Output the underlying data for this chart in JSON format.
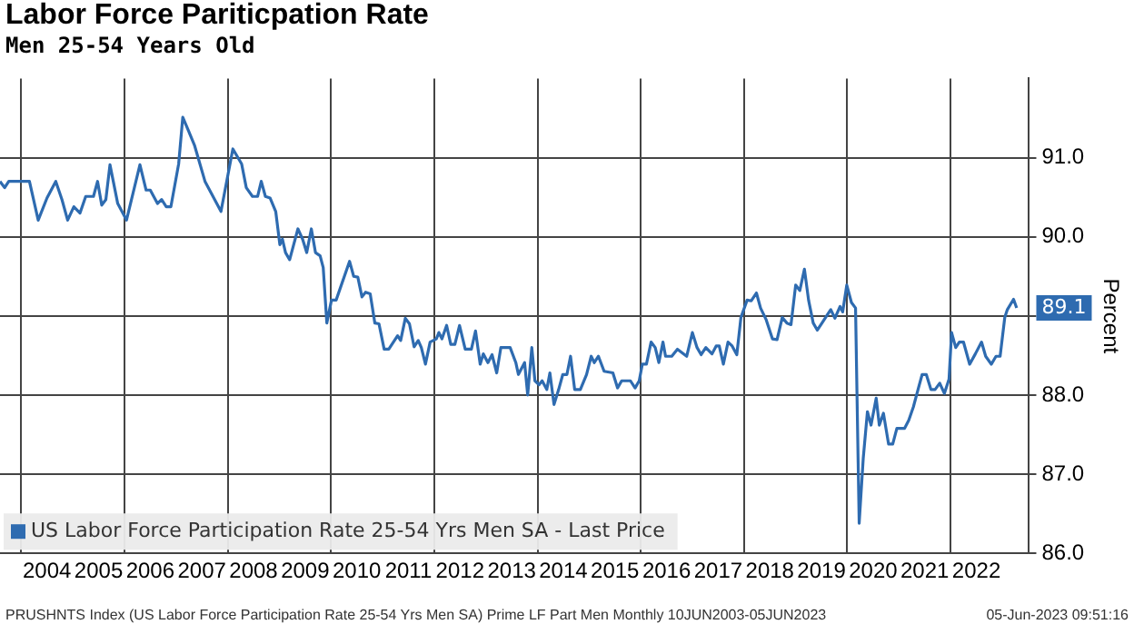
{
  "chart_data": {
    "type": "line",
    "title": "Labor Force Pariticpation Rate",
    "subtitle": "Men 25-54 Years Old",
    "ylabel": "Percent",
    "annotations": [
      "PRUSHNTS Index (US Labor Force Participation Rate 25-54 Yrs Men SA) Prime LF Part Men  Monthly 10JUN2003-05JUN2023",
      "05-Jun-2023 09:51:16"
    ],
    "x": [
      2003.59,
      2003.68,
      2003.76,
      2004.16,
      2004.33,
      2004.5,
      2004.67,
      2004.79,
      2004.9,
      2005.02,
      2005.14,
      2005.25,
      2005.4,
      2005.48,
      2005.56,
      2005.64,
      2005.72,
      2005.87,
      2006.04,
      2006.3,
      2006.42,
      2006.5,
      2006.64,
      2006.72,
      2006.81,
      2006.9,
      2007.05,
      2007.13,
      2007.24,
      2007.36,
      2007.56,
      2007.87,
      2008.1,
      2008.27,
      2008.36,
      2008.48,
      2008.58,
      2008.65,
      2008.73,
      2008.82,
      2008.93,
      2009.01,
      2009.06,
      2009.12,
      2009.2,
      2009.36,
      2009.45,
      2009.53,
      2009.62,
      2009.7,
      2009.79,
      2009.85,
      2009.92,
      2010.01,
      2010.1,
      2010.36,
      2010.44,
      2010.52,
      2010.6,
      2010.67,
      2010.76,
      2010.85,
      2010.93,
      2011.03,
      2011.12,
      2011.29,
      2011.35,
      2011.44,
      2011.52,
      2011.61,
      2011.69,
      2011.75,
      2011.83,
      2011.92,
      2012.04,
      2012.09,
      2012.15,
      2012.24,
      2012.32,
      2012.4,
      2012.49,
      2012.6,
      2012.72,
      2012.8,
      2012.89,
      2012.95,
      2013.04,
      2013.12,
      2013.21,
      2013.29,
      2013.47,
      2013.58,
      2013.63,
      2013.75,
      2013.81,
      2013.89,
      2013.95,
      2014.03,
      2014.09,
      2014.18,
      2014.24,
      2014.32,
      2014.41,
      2014.49,
      2014.57,
      2014.64,
      2014.72,
      2014.83,
      2014.95,
      2015.04,
      2015.1,
      2015.18,
      2015.29,
      2015.46,
      2015.55,
      2015.63,
      2015.8,
      2015.89,
      2015.97,
      2016.03,
      2016.11,
      2016.2,
      2016.28,
      2016.35,
      2016.43,
      2016.48,
      2016.6,
      2016.71,
      2016.89,
      2017.0,
      2017.09,
      2017.17,
      2017.26,
      2017.38,
      2017.46,
      2017.52,
      2017.6,
      2017.69,
      2017.77,
      2017.86,
      2017.94,
      2018.06,
      2018.14,
      2018.24,
      2018.32,
      2018.43,
      2018.55,
      2018.64,
      2018.74,
      2018.83,
      2018.91,
      2019.0,
      2019.08,
      2019.17,
      2019.25,
      2019.34,
      2019.42,
      2019.51,
      2019.63,
      2019.68,
      2019.76,
      2019.86,
      2019.91,
      2019.99,
      2020.08,
      2020.16,
      2020.23,
      2020.31,
      2020.39,
      2020.46,
      2020.56,
      2020.62,
      2020.7,
      2020.8,
      2020.88,
      2020.96,
      2021.11,
      2021.19,
      2021.28,
      2021.37,
      2021.45,
      2021.53,
      2021.62,
      2021.7,
      2021.79,
      2021.88,
      2021.97,
      2022.02,
      2022.1,
      2022.17,
      2022.25,
      2022.37,
      2022.48,
      2022.6,
      2022.68,
      2022.79,
      2022.88,
      2022.96,
      2023.05,
      2023.1,
      2023.22,
      2023.28
    ],
    "series": [
      {
        "name": "US Labor Force Participation Rate 25-54 Yrs Men SA - Last Price",
        "color": "#2e6bb0",
        "values": [
          90.7,
          90.62,
          90.7,
          90.7,
          90.21,
          90.49,
          90.7,
          90.47,
          90.21,
          90.38,
          90.3,
          90.51,
          90.51,
          90.7,
          90.4,
          90.47,
          90.91,
          90.42,
          90.21,
          90.91,
          90.59,
          90.59,
          90.42,
          90.47,
          90.38,
          90.38,
          90.92,
          91.51,
          91.34,
          91.15,
          90.7,
          90.32,
          91.11,
          90.92,
          90.62,
          90.51,
          90.51,
          90.7,
          90.51,
          90.49,
          90.32,
          89.9,
          89.97,
          89.8,
          89.71,
          90.1,
          89.97,
          89.8,
          90.1,
          89.8,
          89.76,
          89.61,
          88.91,
          89.2,
          89.2,
          89.69,
          89.5,
          89.49,
          89.24,
          89.3,
          89.28,
          88.91,
          88.9,
          88.58,
          88.58,
          88.75,
          88.69,
          88.97,
          88.9,
          88.61,
          88.69,
          88.6,
          88.39,
          88.67,
          88.71,
          88.79,
          88.71,
          88.88,
          88.64,
          88.64,
          88.88,
          88.58,
          88.58,
          88.81,
          88.39,
          88.52,
          88.41,
          88.51,
          88.28,
          88.6,
          88.6,
          88.41,
          88.26,
          88.41,
          88.0,
          88.6,
          88.18,
          88.13,
          88.18,
          88.07,
          88.28,
          87.88,
          88.07,
          88.26,
          88.26,
          88.49,
          88.07,
          88.07,
          88.26,
          88.49,
          88.41,
          88.49,
          88.3,
          88.28,
          88.09,
          88.18,
          88.18,
          88.09,
          88.18,
          88.39,
          88.39,
          88.67,
          88.6,
          88.41,
          88.67,
          88.49,
          88.49,
          88.58,
          88.49,
          88.79,
          88.6,
          88.51,
          88.6,
          88.52,
          88.62,
          88.62,
          88.39,
          88.67,
          88.62,
          88.51,
          88.98,
          89.2,
          89.19,
          89.29,
          89.1,
          88.95,
          88.71,
          88.7,
          88.98,
          88.91,
          88.89,
          89.39,
          89.32,
          89.59,
          89.2,
          88.91,
          88.82,
          88.91,
          89.03,
          89.08,
          88.97,
          89.12,
          89.05,
          89.39,
          89.17,
          89.1,
          86.38,
          87.21,
          87.79,
          87.62,
          87.96,
          87.62,
          87.77,
          87.38,
          87.38,
          87.58,
          87.58,
          87.68,
          87.85,
          88.07,
          88.26,
          88.26,
          88.07,
          88.07,
          88.15,
          88.02,
          88.2,
          88.79,
          88.6,
          88.67,
          88.67,
          88.39,
          88.52,
          88.67,
          88.49,
          88.39,
          88.49,
          88.49,
          88.98,
          89.08,
          89.21,
          89.1
        ],
        "value_labels": [
          null,
          null,
          null,
          null,
          null,
          null,
          null,
          null,
          null,
          null,
          null,
          null,
          null,
          null,
          null,
          null,
          null,
          null,
          null,
          null,
          null,
          null,
          null,
          null,
          null,
          null,
          null,
          null,
          null,
          null,
          null,
          null,
          null,
          null,
          null,
          null,
          null,
          null,
          null,
          null,
          null,
          null,
          null,
          null,
          null,
          null,
          null,
          null,
          null,
          null,
          null,
          null,
          null,
          null,
          null,
          null,
          null,
          null,
          null,
          null,
          null,
          null,
          null,
          null,
          null,
          null,
          null,
          null,
          null,
          null,
          null,
          null,
          null,
          null,
          null,
          null,
          null,
          null,
          null,
          null,
          null,
          null,
          null,
          null,
          null,
          null,
          null,
          null,
          null,
          null,
          null,
          null,
          null,
          null,
          null,
          null,
          null,
          null,
          null,
          null,
          null,
          null,
          null,
          null,
          null,
          null,
          null,
          null,
          null,
          null,
          null,
          null,
          null,
          null,
          null,
          null,
          null,
          null,
          null,
          null,
          null,
          null,
          null,
          null,
          null,
          null,
          null,
          null,
          null,
          null,
          null,
          null,
          null,
          null,
          null,
          null,
          null,
          null,
          null,
          null,
          null,
          null,
          null,
          null,
          null,
          null,
          null,
          null,
          null,
          null,
          null,
          null,
          null,
          null,
          null,
          null,
          null,
          null,
          null,
          null,
          null,
          null,
          null,
          null,
          null,
          null,
          null,
          null,
          null,
          null,
          null,
          null,
          null,
          null,
          null,
          null,
          null,
          null,
          null,
          null,
          null,
          null,
          null,
          null,
          null,
          null,
          null,
          null,
          null,
          null,
          null,
          null,
          null,
          null,
          null,
          null,
          null,
          null,
          null,
          null,
          null,
          "89.1"
        ]
      }
    ],
    "xlim": [
      2003.59,
      2023.52
    ],
    "xticks": [
      {
        "value": 2004,
        "label": null
      },
      {
        "value": 2006,
        "label": null
      },
      {
        "value": 2008,
        "label": null
      },
      {
        "value": 2010,
        "label": null
      },
      {
        "value": 2012,
        "label": null
      },
      {
        "value": 2014,
        "label": null
      },
      {
        "value": 2016,
        "label": null
      },
      {
        "value": 2018,
        "label": null
      },
      {
        "value": 2020,
        "label": null
      },
      {
        "value": 2022,
        "label": null
      },
      {
        "value": 2004.5,
        "label": "2004"
      },
      {
        "value": 2005.5,
        "label": "2005"
      },
      {
        "value": 2006.5,
        "label": "2006"
      },
      {
        "value": 2007.5,
        "label": "2007"
      },
      {
        "value": 2008.5,
        "label": "2008"
      },
      {
        "value": 2009.5,
        "label": "2009"
      },
      {
        "value": 2010.5,
        "label": "2010"
      },
      {
        "value": 2011.5,
        "label": "2011"
      },
      {
        "value": 2012.5,
        "label": "2012"
      },
      {
        "value": 2013.5,
        "label": "2013"
      },
      {
        "value": 2014.5,
        "label": "2014"
      },
      {
        "value": 2015.5,
        "label": "2015"
      },
      {
        "value": 2016.5,
        "label": "2016"
      },
      {
        "value": 2017.5,
        "label": "2017"
      },
      {
        "value": 2018.5,
        "label": "2018"
      },
      {
        "value": 2019.5,
        "label": "2019"
      },
      {
        "value": 2020.5,
        "label": "2020"
      },
      {
        "value": 2021.5,
        "label": "2021"
      },
      {
        "value": 2022.5,
        "label": "2022"
      }
    ],
    "ylim": [
      86,
      92
    ],
    "yticks": [
      {
        "value": 86,
        "label": "86.0"
      },
      {
        "value": 87,
        "label": "87.0"
      },
      {
        "value": 88,
        "label": "88.0"
      },
      {
        "value": 89,
        "label": null
      },
      {
        "value": 90,
        "label": "90.0"
      },
      {
        "value": 91,
        "label": "91.0"
      }
    ],
    "grid": true,
    "legend": "bottom left",
    "marker": "none"
  }
}
